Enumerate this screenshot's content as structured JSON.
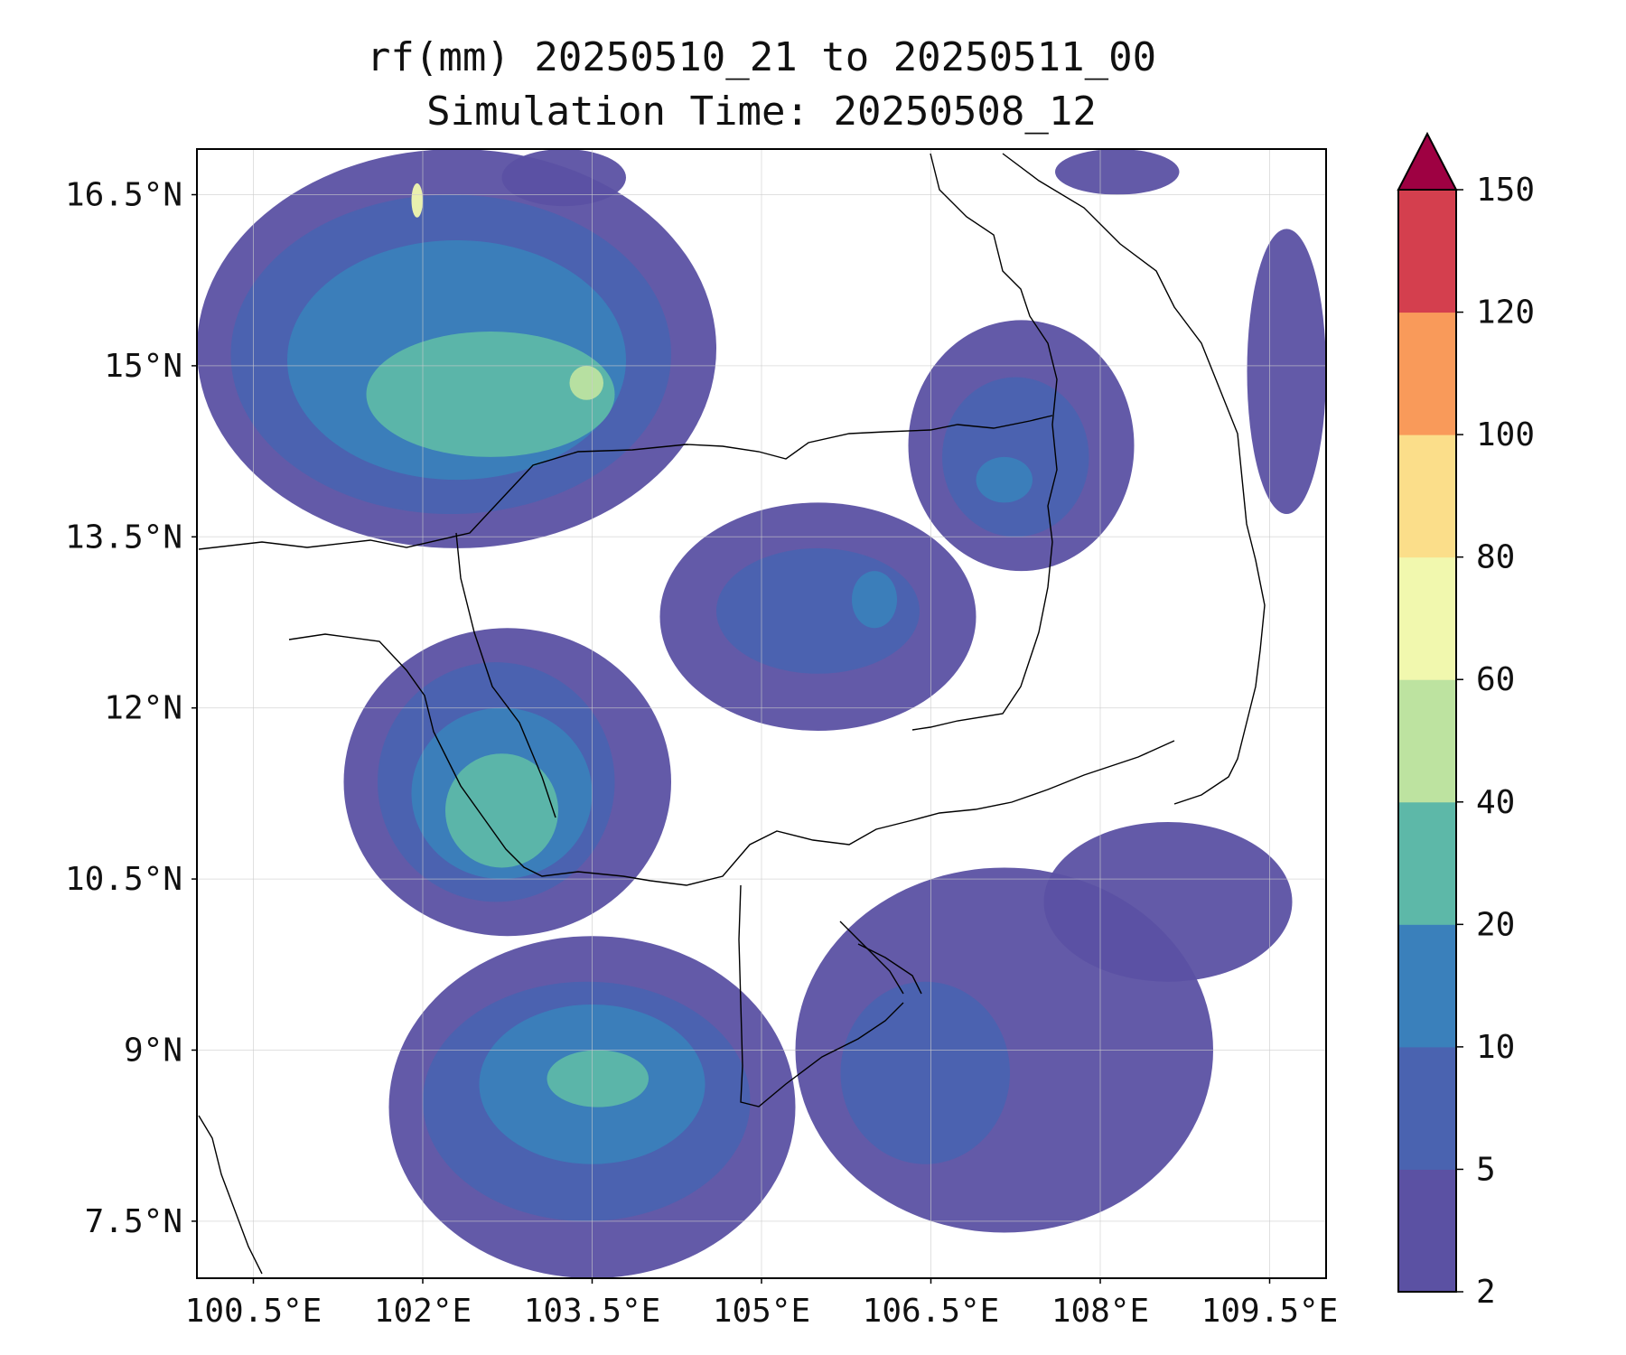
{
  "title_line1": "rf(mm) 20250510_21 to 20250511_00",
  "title_line2": "Simulation Time: 20250508_12",
  "map": {
    "lon_range": [
      100.0,
      110.0
    ],
    "lat_range": [
      7.0,
      16.9
    ],
    "lon_ticks": [
      100.5,
      102,
      103.5,
      105,
      106.5,
      108,
      109.5
    ],
    "lon_tick_labels": [
      "100.5°E",
      "102°E",
      "103.5°E",
      "105°E",
      "106.5°E",
      "108°E",
      "109.5°E"
    ],
    "lat_ticks": [
      16.5,
      15,
      13.5,
      12,
      10.5,
      9,
      7.5
    ],
    "lat_tick_labels": [
      "16.5°N",
      "15°N",
      "13.5°N",
      "12°N",
      "10.5°N",
      "9°N",
      "7.5°N"
    ],
    "gridlines": true,
    "coastlines_and_borders": true
  },
  "colorbar": {
    "levels": [
      2,
      5,
      10,
      20,
      40,
      60,
      80,
      100,
      120,
      150
    ],
    "tick_labels": [
      "2",
      "5",
      "10",
      "20",
      "40",
      "60",
      "80",
      "100",
      "120",
      "150"
    ],
    "colors": [
      "#5b51a3",
      "#4a63b0",
      "#3a80bb",
      "#5db8a8",
      "#bde3a0",
      "#f1f8ae",
      "#fbde8a",
      "#f99a5a",
      "#d43f4e"
    ],
    "extend_color": "#9e0142",
    "extend": "max"
  },
  "rain_areas": [
    {
      "level": 0,
      "lon": [
        100.0,
        104.6
      ],
      "lat": [
        13.4,
        16.9
      ]
    },
    {
      "level": 1,
      "lon": [
        100.3,
        104.2
      ],
      "lat": [
        13.7,
        16.5
      ]
    },
    {
      "level": 2,
      "lon": [
        100.8,
        103.8
      ],
      "lat": [
        14.0,
        16.1
      ]
    },
    {
      "level": 3,
      "lon": [
        101.5,
        103.7
      ],
      "lat": [
        14.2,
        15.3
      ]
    },
    {
      "level": 4,
      "lon": [
        103.3,
        103.6
      ],
      "lat": [
        14.7,
        15.0
      ]
    },
    {
      "level": 5,
      "lon": [
        101.9,
        102.0
      ],
      "lat": [
        16.3,
        16.6
      ]
    },
    {
      "level": 0,
      "lon": [
        101.3,
        104.2
      ],
      "lat": [
        10.0,
        12.7
      ]
    },
    {
      "level": 1,
      "lon": [
        101.6,
        103.7
      ],
      "lat": [
        10.3,
        12.4
      ]
    },
    {
      "level": 2,
      "lon": [
        101.9,
        103.5
      ],
      "lat": [
        10.5,
        12.0
      ]
    },
    {
      "level": 3,
      "lon": [
        102.2,
        103.2
      ],
      "lat": [
        10.6,
        11.6
      ]
    },
    {
      "level": 0,
      "lon": [
        101.7,
        105.3
      ],
      "lat": [
        7.0,
        10.0
      ]
    },
    {
      "level": 1,
      "lon": [
        102.0,
        104.9
      ],
      "lat": [
        7.5,
        9.6
      ]
    },
    {
      "level": 2,
      "lon": [
        102.5,
        104.5
      ],
      "lat": [
        8.0,
        9.4
      ]
    },
    {
      "level": 3,
      "lon": [
        103.1,
        104.0
      ],
      "lat": [
        8.5,
        9.0
      ]
    },
    {
      "level": 0,
      "lon": [
        104.1,
        106.9
      ],
      "lat": [
        11.8,
        13.8
      ]
    },
    {
      "level": 1,
      "lon": [
        104.6,
        106.4
      ],
      "lat": [
        12.3,
        13.4
      ]
    },
    {
      "level": 2,
      "lon": [
        105.8,
        106.2
      ],
      "lat": [
        12.7,
        13.2
      ]
    },
    {
      "level": 0,
      "lon": [
        106.3,
        108.3
      ],
      "lat": [
        13.2,
        15.4
      ]
    },
    {
      "level": 1,
      "lon": [
        106.6,
        107.9
      ],
      "lat": [
        13.5,
        14.9
      ]
    },
    {
      "level": 2,
      "lon": [
        106.9,
        107.4
      ],
      "lat": [
        13.8,
        14.2
      ]
    },
    {
      "level": 0,
      "lon": [
        109.3,
        110.0
      ],
      "lat": [
        13.7,
        16.2
      ]
    },
    {
      "level": 0,
      "lon": [
        105.3,
        109.0
      ],
      "lat": [
        7.4,
        10.6
      ]
    },
    {
      "level": 1,
      "lon": [
        105.7,
        107.2
      ],
      "lat": [
        8.0,
        9.6
      ]
    },
    {
      "level": 0,
      "lon": [
        107.5,
        109.7
      ],
      "lat": [
        9.6,
        11.0
      ]
    },
    {
      "level": 0,
      "lon": [
        102.7,
        103.8
      ],
      "lat": [
        16.4,
        16.9
      ]
    },
    {
      "level": 0,
      "lon": [
        107.6,
        108.7
      ],
      "lat": [
        16.5,
        16.9
      ]
    }
  ]
}
